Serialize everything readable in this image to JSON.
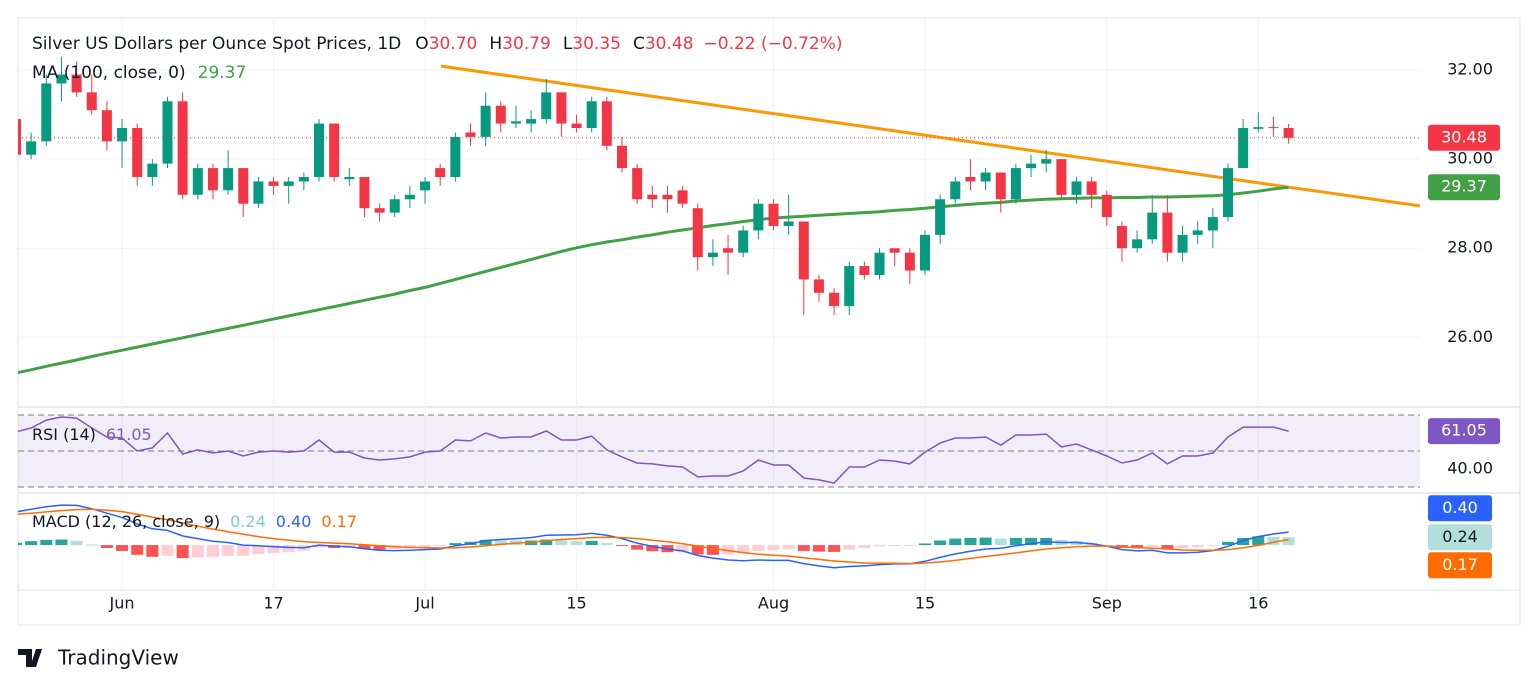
{
  "chart_data": {
    "type": "candlestick",
    "title": "Silver US Dollars per Ounce Spot Prices, 1D",
    "header": {
      "prefixes": [
        "O",
        "H",
        "L",
        "C"
      ],
      "ohlc": [
        "30.70",
        "30.79",
        "30.35",
        "30.48"
      ],
      "change": "−0.22 (−0.72%)",
      "color": "#f23645"
    },
    "categories": [
      null,
      null,
      null,
      null,
      null,
      null,
      null,
      "Jun",
      null,
      null,
      null,
      null,
      null,
      null,
      null,
      null,
      null,
      "17",
      null,
      null,
      null,
      null,
      null,
      null,
      null,
      null,
      null,
      "Jul",
      null,
      null,
      null,
      null,
      null,
      null,
      null,
      null,
      null,
      "15",
      null,
      null,
      null,
      null,
      null,
      null,
      null,
      null,
      null,
      null,
      null,
      null,
      "Aug",
      null,
      null,
      null,
      null,
      null,
      null,
      null,
      null,
      null,
      "15",
      null,
      null,
      null,
      null,
      null,
      null,
      null,
      null,
      null,
      null,
      null,
      "Sep",
      null,
      null,
      null,
      null,
      null,
      null,
      null,
      null,
      null,
      "16",
      null,
      null
    ],
    "open": [
      30.9,
      30.1,
      30.4,
      31.7,
      31.9,
      31.5,
      31.1,
      30.4,
      30.7,
      29.6,
      29.9,
      31.3,
      29.2,
      29.8,
      29.3,
      29.8,
      29.0,
      29.5,
      29.4,
      29.5,
      29.6,
      30.8,
      29.55,
      29.6,
      28.9,
      28.8,
      29.1,
      29.3,
      29.8,
      29.6,
      30.6,
      30.5,
      31.2,
      30.8,
      30.8,
      30.9,
      31.5,
      30.8,
      30.7,
      31.3,
      30.3,
      29.8,
      29.2,
      29.2,
      29.3,
      28.9,
      27.8,
      28.0,
      27.9,
      28.4,
      29.0,
      28.5,
      28.6,
      27.3,
      27.0,
      26.7,
      27.6,
      27.4,
      28.0,
      27.9,
      27.5,
      28.3,
      29.1,
      29.6,
      29.5,
      29.7,
      29.1,
      29.8,
      29.9,
      30.0,
      29.2,
      29.5,
      29.2,
      28.5,
      28.0,
      28.2,
      28.8,
      27.9,
      28.3,
      28.4,
      28.7,
      29.8,
      30.68,
      30.72,
      30.7
    ],
    "high": [
      31.1,
      30.6,
      31.9,
      32.3,
      32.2,
      31.9,
      31.3,
      30.9,
      30.8,
      30.0,
      31.4,
      31.5,
      29.9,
      29.9,
      30.2,
      29.8,
      29.6,
      29.6,
      29.6,
      29.7,
      30.9,
      30.8,
      29.8,
      29.6,
      29.0,
      29.2,
      29.4,
      29.6,
      29.9,
      30.6,
      30.8,
      31.5,
      31.3,
      31.2,
      31.1,
      31.8,
      31.5,
      31.0,
      31.4,
      31.4,
      30.5,
      29.9,
      29.4,
      29.4,
      29.4,
      29.0,
      28.2,
      28.3,
      28.5,
      29.1,
      29.1,
      29.2,
      28.6,
      27.4,
      27.1,
      27.7,
      27.7,
      28.0,
      28.0,
      28.0,
      28.4,
      29.2,
      29.6,
      30.0,
      29.8,
      29.7,
      29.9,
      30.1,
      30.2,
      30.0,
      29.6,
      29.6,
      29.3,
      28.6,
      28.4,
      29.2,
      29.2,
      28.5,
      28.6,
      28.9,
      29.9,
      30.9,
      31.05,
      30.95,
      30.79
    ],
    "low": [
      30.0,
      30.0,
      30.3,
      31.3,
      31.4,
      31.0,
      30.2,
      29.8,
      29.4,
      29.4,
      29.8,
      29.1,
      29.1,
      29.1,
      29.2,
      28.7,
      28.9,
      29.2,
      29.0,
      29.3,
      29.5,
      29.5,
      29.4,
      28.7,
      28.6,
      28.7,
      28.9,
      29.0,
      29.4,
      29.5,
      30.3,
      30.3,
      30.6,
      30.7,
      30.6,
      30.8,
      30.5,
      30.6,
      30.6,
      30.2,
      29.7,
      29.0,
      28.9,
      28.8,
      28.9,
      27.5,
      27.6,
      27.4,
      27.8,
      28.2,
      28.4,
      28.3,
      26.5,
      26.8,
      26.5,
      26.5,
      27.3,
      27.3,
      27.6,
      27.2,
      27.4,
      28.1,
      29.0,
      29.3,
      29.3,
      28.8,
      29.0,
      29.6,
      29.7,
      29.1,
      29.0,
      28.9,
      28.5,
      27.7,
      27.9,
      28.1,
      27.7,
      27.7,
      28.1,
      28.0,
      28.6,
      29.8,
      30.6,
      30.5,
      30.35
    ],
    "close": [
      30.1,
      30.4,
      31.7,
      31.9,
      31.5,
      31.1,
      30.4,
      30.7,
      29.6,
      29.9,
      31.3,
      29.2,
      29.8,
      29.3,
      29.8,
      29.0,
      29.5,
      29.4,
      29.5,
      29.6,
      30.8,
      29.6,
      29.6,
      28.9,
      28.8,
      29.1,
      29.2,
      29.5,
      29.6,
      30.5,
      30.5,
      31.2,
      30.8,
      30.85,
      30.9,
      31.5,
      30.8,
      30.7,
      31.3,
      30.3,
      29.8,
      29.1,
      29.1,
      29.1,
      29.0,
      27.8,
      27.9,
      27.9,
      28.4,
      29.0,
      28.5,
      28.6,
      27.3,
      27.0,
      26.7,
      27.6,
      27.4,
      27.9,
      27.9,
      27.5,
      28.3,
      29.1,
      29.5,
      29.5,
      29.7,
      29.1,
      29.8,
      29.9,
      30.0,
      29.2,
      29.5,
      29.2,
      28.7,
      28.0,
      28.2,
      28.8,
      27.9,
      28.3,
      28.4,
      28.7,
      29.8,
      30.7,
      30.72,
      30.7,
      30.48
    ],
    "up_color": "#089981",
    "down_color": "#f23645",
    "ylim": [
      24.48,
      33.17
    ],
    "yticks": [
      {
        "value": 32,
        "label": "32.00"
      },
      {
        "value": 30,
        "label": "30.00"
      },
      {
        "value": 28,
        "label": "28.00"
      },
      {
        "value": 26,
        "label": "26.00"
      }
    ],
    "grid": true,
    "ma": {
      "label": "MA (100, close, 0)",
      "color": "#43a047",
      "values": [
        25.2,
        25.27,
        25.35,
        25.42,
        25.49,
        25.57,
        25.64,
        25.71,
        25.78,
        25.85,
        25.92,
        25.99,
        26.06,
        26.13,
        26.2,
        26.27,
        26.34,
        26.41,
        26.48,
        26.55,
        26.62,
        26.69,
        26.76,
        26.83,
        26.9,
        26.97,
        27.05,
        27.12,
        27.21,
        27.3,
        27.39,
        27.48,
        27.57,
        27.66,
        27.75,
        27.84,
        27.93,
        28.01,
        28.08,
        28.14,
        28.19,
        28.25,
        28.3,
        28.36,
        28.41,
        28.46,
        28.51,
        28.55,
        28.6,
        28.64,
        28.68,
        28.7,
        28.72,
        28.74,
        28.76,
        28.78,
        28.8,
        28.82,
        28.85,
        28.87,
        28.9,
        28.93,
        28.96,
        28.99,
        29.01,
        29.03,
        29.06,
        29.08,
        29.1,
        29.11,
        29.12,
        29.13,
        29.13,
        29.14,
        29.14,
        29.15,
        29.15,
        29.16,
        29.17,
        29.18,
        29.2,
        29.24,
        29.28,
        29.33,
        29.37
      ]
    },
    "trendline": {
      "x": [
        28.05,
        93.1
      ],
      "values": [
        32.09,
        28.93
      ],
      "color": "#ff9800"
    },
    "rsi": {
      "label": "RSI (14)",
      "color": "#7e57c2",
      "ylim": [
        27.2,
        73.9
      ],
      "yticks": [
        {
          "value": 40,
          "label": "40.00"
        }
      ],
      "bands": [
        70,
        50,
        30
      ],
      "values": [
        60.6,
        62.8,
        67.2,
        68.9,
        68.3,
        62.8,
        57.8,
        57.2,
        50,
        51.7,
        60,
        48.3,
        50.6,
        48.9,
        50,
        47.2,
        49.4,
        50,
        49.4,
        50,
        56.1,
        49.4,
        49.4,
        46.1,
        45,
        45.6,
        46.7,
        49.4,
        50,
        56.1,
        55.6,
        60,
        57.2,
        57.8,
        57.8,
        61.1,
        56.1,
        56.1,
        58.3,
        50.6,
        46.7,
        43.3,
        42.8,
        41.7,
        41.1,
        35.6,
        36.1,
        36.1,
        38.9,
        45,
        42.2,
        42.2,
        35,
        33.9,
        32.2,
        41.1,
        41.1,
        45,
        44.4,
        42.8,
        49.4,
        54.4,
        57.2,
        57.2,
        57.8,
        53.3,
        58.9,
        58.9,
        59.4,
        52.2,
        53.9,
        50.6,
        47.2,
        43.3,
        45,
        48.9,
        42.8,
        47.2,
        47.2,
        48.9,
        57.8,
        63.3,
        63.3,
        63.3,
        61.05
      ]
    },
    "macd": {
      "label": "MACD (12, 26, close, 9)",
      "ylim": [
        -1.32,
        1.54
      ],
      "histogram": {
        "last_label": "0.24",
        "colors": [
          "#26a69a",
          "#b2dfdb",
          "#ff5252",
          "#ffcdd2"
        ],
        "values": [
          0.07,
          0.12,
          0.16,
          0.17,
          0.13,
          0.02,
          -0.09,
          -0.18,
          -0.3,
          -0.36,
          -0.33,
          -0.4,
          -0.38,
          -0.37,
          -0.33,
          -0.33,
          -0.28,
          -0.25,
          -0.22,
          -0.18,
          -0.08,
          -0.09,
          -0.09,
          -0.12,
          -0.14,
          -0.12,
          -0.09,
          -0.06,
          -0.03,
          0.06,
          0.1,
          0.16,
          0.15,
          0.14,
          0.14,
          0.17,
          0.14,
          0.12,
          0.13,
          0.06,
          -0.03,
          -0.14,
          -0.19,
          -0.22,
          -0.22,
          -0.29,
          -0.3,
          -0.29,
          -0.25,
          -0.18,
          -0.16,
          -0.13,
          -0.18,
          -0.2,
          -0.21,
          -0.14,
          -0.09,
          -0.04,
          -0.02,
          -0.01,
          0.05,
          0.14,
          0.2,
          0.22,
          0.23,
          0.2,
          0.22,
          0.22,
          0.22,
          0.16,
          0.13,
          0.07,
          0.0,
          -0.09,
          -0.1,
          -0.06,
          -0.12,
          -0.09,
          -0.06,
          -0.01,
          0.1,
          0.22,
          0.27,
          0.25,
          0.24
        ]
      },
      "macd": {
        "last_label": "0.40",
        "color": "#2962ff",
        "values": [
          1.02,
          1.1,
          1.18,
          1.23,
          1.22,
          1.12,
          0.98,
          0.85,
          0.65,
          0.5,
          0.45,
          0.28,
          0.2,
          0.12,
          0.08,
          0.0,
          -0.02,
          -0.05,
          -0.07,
          -0.08,
          0.0,
          -0.03,
          -0.05,
          -0.11,
          -0.16,
          -0.17,
          -0.16,
          -0.14,
          -0.12,
          -0.02,
          0.04,
          0.14,
          0.17,
          0.2,
          0.23,
          0.3,
          0.31,
          0.32,
          0.36,
          0.3,
          0.2,
          0.06,
          -0.04,
          -0.12,
          -0.18,
          -0.32,
          -0.4,
          -0.46,
          -0.48,
          -0.46,
          -0.47,
          -0.47,
          -0.57,
          -0.64,
          -0.7,
          -0.66,
          -0.64,
          -0.6,
          -0.58,
          -0.58,
          -0.5,
          -0.38,
          -0.27,
          -0.19,
          -0.12,
          -0.1,
          -0.02,
          0.04,
          0.1,
          0.08,
          0.08,
          0.04,
          -0.03,
          -0.14,
          -0.18,
          -0.16,
          -0.24,
          -0.24,
          -0.22,
          -0.17,
          -0.04,
          0.14,
          0.26,
          0.34,
          0.4
        ]
      },
      "signal": {
        "last_label": "0.17",
        "color": "#ff6d00",
        "values": [
          0.95,
          0.98,
          1.02,
          1.06,
          1.09,
          1.1,
          1.07,
          1.03,
          0.95,
          0.86,
          0.78,
          0.68,
          0.58,
          0.49,
          0.41,
          0.33,
          0.26,
          0.2,
          0.15,
          0.1,
          0.08,
          0.06,
          0.04,
          0.01,
          -0.02,
          -0.05,
          -0.07,
          -0.08,
          -0.09,
          -0.08,
          -0.06,
          -0.02,
          0.02,
          0.06,
          0.09,
          0.13,
          0.17,
          0.2,
          0.23,
          0.24,
          0.23,
          0.2,
          0.15,
          0.1,
          0.04,
          -0.03,
          -0.1,
          -0.17,
          -0.23,
          -0.28,
          -0.31,
          -0.34,
          -0.39,
          -0.44,
          -0.49,
          -0.52,
          -0.55,
          -0.56,
          -0.56,
          -0.57,
          -0.55,
          -0.52,
          -0.47,
          -0.41,
          -0.35,
          -0.3,
          -0.24,
          -0.18,
          -0.12,
          -0.08,
          -0.05,
          -0.03,
          -0.03,
          -0.05,
          -0.08,
          -0.1,
          -0.12,
          -0.15,
          -0.16,
          -0.16,
          -0.14,
          -0.08,
          -0.01,
          0.09,
          0.17
        ]
      }
    },
    "branding": "TradingView"
  }
}
